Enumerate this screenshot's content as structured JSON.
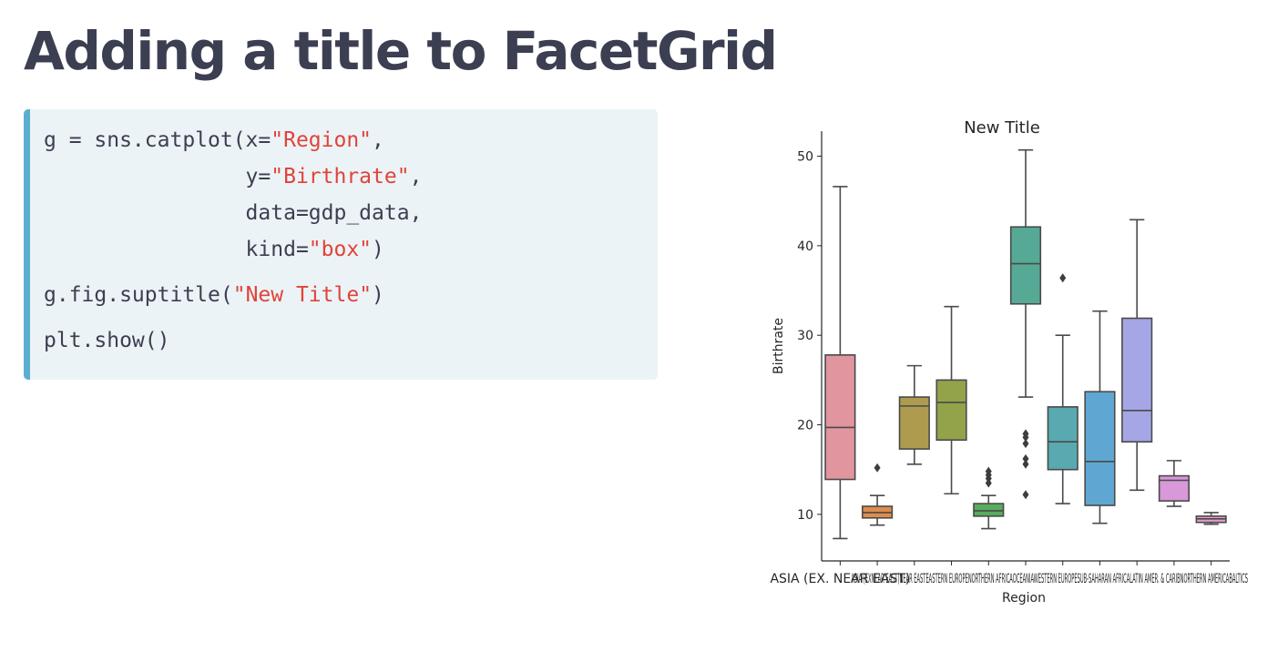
{
  "slide": {
    "title": "Adding a title to FacetGrid"
  },
  "code": {
    "lines": [
      [
        {
          "t": "g = sns.catplot(x="
        },
        {
          "t": "\"Region\"",
          "s": 1
        },
        {
          "t": ","
        }
      ],
      [
        {
          "t": "                y="
        },
        {
          "t": "\"Birthrate\"",
          "s": 1
        },
        {
          "t": ","
        }
      ],
      [
        {
          "t": "                data=gdp_data,"
        }
      ],
      [
        {
          "t": "                kind="
        },
        {
          "t": "\"box\"",
          "s": 1
        },
        {
          "t": ")"
        }
      ],
      [
        {
          "t": "g.fig.suptitle("
        },
        {
          "t": "\"New Title\"",
          "s": 1
        },
        {
          "t": ")"
        }
      ],
      [
        {
          "t": "plt.show()"
        }
      ]
    ]
  },
  "chart_data": {
    "type": "box",
    "title": "New Title",
    "xlabel": "Region",
    "ylabel": "Birthrate",
    "ylim": [
      4.8,
      52.8
    ],
    "yticks": [
      10,
      20,
      30,
      40,
      50
    ],
    "grid": false,
    "legend": "none",
    "first_tick_label": "ASIA (EX. NEAR EAST)",
    "overlapping_tick_label_text": "ASIA (EXNEAR EAST)NEAR EASTEASTERN EUROPENORTHERN AFRICAOCEANIAWESTERN EUROPESUB-SAHARAN AFRICALATIN AMER. & CARIBNORTHERN AMERICABALTICS",
    "boxes": [
      {
        "color": "#e0959f",
        "q1": 13.9,
        "median": 19.7,
        "q3": 27.8,
        "whisker_low": 7.3,
        "whisker_high": 46.6,
        "outliers": []
      },
      {
        "color": "#dd8c4d",
        "q1": 9.6,
        "median": 10.2,
        "q3": 10.9,
        "whisker_low": 8.8,
        "whisker_high": 12.1,
        "outliers": [
          15.2
        ]
      },
      {
        "color": "#ae9b4f",
        "q1": 17.3,
        "median": 22.1,
        "q3": 23.1,
        "whisker_low": 15.6,
        "whisker_high": 26.6,
        "outliers": []
      },
      {
        "color": "#93a34a",
        "q1": 18.3,
        "median": 22.5,
        "q3": 25.0,
        "whisker_low": 12.3,
        "whisker_high": 33.2,
        "outliers": []
      },
      {
        "color": "#57ac5e",
        "q1": 9.8,
        "median": 10.4,
        "q3": 11.2,
        "whisker_low": 8.4,
        "whisker_high": 12.1,
        "outliers": [
          13.5,
          14.0,
          14.4,
          14.8
        ]
      },
      {
        "color": "#56a995",
        "q1": 33.5,
        "median": 38.0,
        "q3": 42.1,
        "whisker_low": 23.1,
        "whisker_high": 50.7,
        "outliers": [
          12.2,
          15.6,
          16.2,
          17.9,
          18.6,
          19.0
        ]
      },
      {
        "color": "#59aab0",
        "q1": 15.0,
        "median": 18.1,
        "q3": 22.0,
        "whisker_low": 11.2,
        "whisker_high": 30.0,
        "outliers": [
          36.4
        ]
      },
      {
        "color": "#5fa7d2",
        "q1": 11.0,
        "median": 15.9,
        "q3": 23.7,
        "whisker_low": 9.0,
        "whisker_high": 32.7,
        "outliers": []
      },
      {
        "color": "#a5a6e6",
        "q1": 18.1,
        "median": 21.6,
        "q3": 31.9,
        "whisker_low": 12.7,
        "whisker_high": 42.9,
        "outliers": []
      },
      {
        "color": "#d898d9",
        "q1": 11.5,
        "median": 13.8,
        "q3": 14.3,
        "whisker_low": 10.9,
        "whisker_high": 16.0,
        "outliers": []
      },
      {
        "color": "#e29bc8",
        "q1": 9.1,
        "median": 9.5,
        "q3": 9.8,
        "whisker_low": 8.9,
        "whisker_high": 10.2,
        "outliers": []
      }
    ]
  }
}
